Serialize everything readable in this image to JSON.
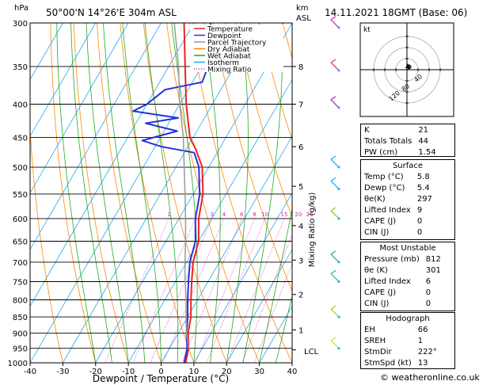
{
  "header": {
    "location": "50°00'N  14°26'E  304m  ASL",
    "datetime": "14.11.2021  18GMT  (Base: 06)",
    "left_axis_unit": "hPa",
    "right_axis_unit_1": "km",
    "right_axis_unit_2": "ASL"
  },
  "chart_data": {
    "type": "line",
    "title": "Skew-T log-P sounding",
    "xlabel": "Dewpoint / Temperature (°C)",
    "ylabel": "hPa",
    "xlim": [
      -40,
      40
    ],
    "ylim": [
      1000,
      300
    ],
    "x_ticks": [
      "-40",
      "-30",
      "-20",
      "-10",
      "0",
      "10",
      "20",
      "30",
      "40"
    ],
    "y_ticks": [
      "300",
      "350",
      "400",
      "450",
      "500",
      "550",
      "600",
      "650",
      "700",
      "750",
      "800",
      "850",
      "900",
      "950",
      "1000"
    ],
    "km_ticks": [
      {
        "label": "8",
        "p": 350
      },
      {
        "label": "7",
        "p": 400
      },
      {
        "label": "6",
        "p": 465
      },
      {
        "label": "5",
        "p": 535
      },
      {
        "label": "4",
        "p": 615
      },
      {
        "label": "3",
        "p": 695
      },
      {
        "label": "2",
        "p": 785
      },
      {
        "label": "1",
        "p": 890
      }
    ],
    "lcl_label": "LCL",
    "lcl_p": 955,
    "mixing_ratio_label": "Mixing Ratio (g/kg)",
    "mixing_ratio_values": [
      "1",
      "2",
      "3",
      "4",
      "6",
      "8",
      "10",
      "15",
      "20",
      "25"
    ],
    "legend": [
      {
        "name": "Temperature",
        "color": "#ee2222"
      },
      {
        "name": "Dewpoint",
        "color": "#2233dd"
      },
      {
        "name": "Parcel Trajectory",
        "color": "#999999"
      },
      {
        "name": "Dry Adiabat",
        "color": "#ff8800"
      },
      {
        "name": "Wet Adiabat",
        "color": "#22aa22"
      },
      {
        "name": "Isotherm",
        "color": "#22aaee"
      },
      {
        "name": "Mixing Ratio",
        "color": "#dd22aa"
      }
    ],
    "series": [
      {
        "name": "Temperature",
        "color": "#ee2222",
        "points": [
          [
            1000,
            7.5
          ],
          [
            950,
            5.8
          ],
          [
            900,
            3
          ],
          [
            850,
            1
          ],
          [
            800,
            -2
          ],
          [
            750,
            -5
          ],
          [
            700,
            -8
          ],
          [
            650,
            -10
          ],
          [
            600,
            -14
          ],
          [
            550,
            -17
          ],
          [
            500,
            -22
          ],
          [
            470,
            -27
          ],
          [
            450,
            -31
          ],
          [
            400,
            -38
          ],
          [
            350,
            -45
          ],
          [
            300,
            -53
          ]
        ]
      },
      {
        "name": "Dewpoint",
        "color": "#2233dd",
        "points": [
          [
            1000,
            7
          ],
          [
            950,
            5.4
          ],
          [
            900,
            2.5
          ],
          [
            850,
            0
          ],
          [
            800,
            -3
          ],
          [
            750,
            -6
          ],
          [
            700,
            -9
          ],
          [
            650,
            -11
          ],
          [
            600,
            -15
          ],
          [
            550,
            -18
          ],
          [
            530,
            -20
          ],
          [
            500,
            -23
          ],
          [
            475,
            -27
          ],
          [
            465,
            -38
          ],
          [
            455,
            -45
          ],
          [
            440,
            -36
          ],
          [
            428,
            -47
          ],
          [
            420,
            -38
          ],
          [
            410,
            -53
          ],
          [
            400,
            -50
          ],
          [
            380,
            -47
          ],
          [
            370,
            -37
          ],
          [
            350,
            -38
          ],
          [
            320,
            -40
          ],
          [
            300,
            -45
          ]
        ]
      },
      {
        "name": "Parcel Trajectory",
        "color": "#999999",
        "points": [
          [
            950,
            5.8
          ],
          [
            900,
            2.5
          ],
          [
            850,
            -0.5
          ],
          [
            800,
            -3.5
          ],
          [
            750,
            -7
          ],
          [
            700,
            -10.5
          ],
          [
            650,
            -14
          ],
          [
            600,
            -18
          ],
          [
            550,
            -22.5
          ],
          [
            500,
            -27.5
          ],
          [
            450,
            -33
          ],
          [
            400,
            -40
          ],
          [
            350,
            -47
          ],
          [
            300,
            -56
          ]
        ]
      }
    ]
  },
  "hodograph": {
    "unit_label": "kt",
    "ring_labels": [
      "40",
      "80",
      "120"
    ]
  },
  "indices": {
    "rows": [
      {
        "label": "K",
        "value": "21"
      },
      {
        "label": "Totals Totals",
        "value": "44"
      },
      {
        "label": "PW (cm)",
        "value": "1.54"
      }
    ]
  },
  "surface": {
    "title": "Surface",
    "rows": [
      {
        "label": "Temp (°C)",
        "value": "5.8"
      },
      {
        "label": "Dewp (°C)",
        "value": "5.4"
      },
      {
        "label": "θe(K)",
        "value": "297"
      },
      {
        "label": "Lifted Index",
        "value": "9"
      },
      {
        "label": "CAPE (J)",
        "value": "0"
      },
      {
        "label": "CIN (J)",
        "value": "0"
      }
    ]
  },
  "most_unstable": {
    "title": "Most Unstable",
    "rows": [
      {
        "label": "Pressure (mb)",
        "value": "812"
      },
      {
        "label": "θe (K)",
        "value": "301"
      },
      {
        "label": "Lifted Index",
        "value": "6"
      },
      {
        "label": "CAPE (J)",
        "value": "0"
      },
      {
        "label": "CIN (J)",
        "value": "0"
      }
    ]
  },
  "hodograph_stats": {
    "title": "Hodograph",
    "rows": [
      {
        "label": "EH",
        "value": "66"
      },
      {
        "label": "SREH",
        "value": "1"
      },
      {
        "label": "StmDir",
        "value": "222°"
      },
      {
        "label": "StmSpd (kt)",
        "value": "13"
      }
    ]
  },
  "footer": {
    "copyright": "© weatheronline.co.uk"
  }
}
